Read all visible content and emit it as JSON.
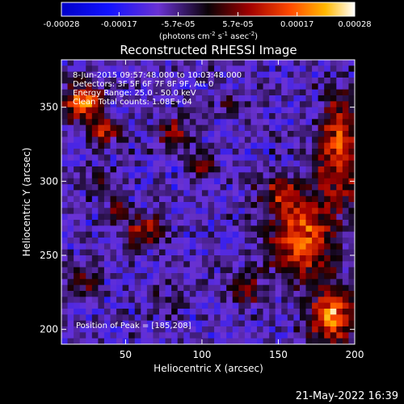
{
  "chart_data": {
    "type": "heatmap",
    "title": "Reconstructed RHESSI Image",
    "xlabel": "Heliocentric X (arcsec)",
    "ylabel": "Heliocentric Y (arcsec)",
    "xlim": [
      8,
      200
    ],
    "ylim": [
      190,
      382
    ],
    "xticks": [
      50,
      100,
      150,
      200
    ],
    "yticks": [
      200,
      250,
      300,
      350
    ],
    "colorbar": {
      "range": [
        -0.00028,
        0.00028
      ],
      "tick_values": [
        -0.00028,
        -0.00017,
        -5.7e-05,
        5.7e-05,
        0.00017,
        0.00028
      ],
      "tick_labels": [
        "-0.00028",
        "-0.00017",
        "-5.7e-05",
        "5.7e-05",
        "0.00017",
        "0.00028"
      ],
      "unit_parts": [
        "(photons cm",
        "-2",
        " s",
        "-1",
        " asec",
        "-2",
        ")"
      ]
    },
    "annotations": [
      "8-Jun-2015 09:57:48.000 to 10:03:48.000",
      "Detectors: 3F 5F 6F 7F 8F 9F, Att 0",
      "Energy Range: 25.0 - 50.0 keV",
      "Clean    Total counts: 1.08E+04"
    ],
    "peak_label": "Position of Peak = [185,208]",
    "peak": [
      185,
      208
    ],
    "grid": {
      "cols": 48,
      "rows": 48,
      "seed": 7,
      "background": -9e-05,
      "blobs": [
        {
          "x": 22,
          "y": 353,
          "sx": 9,
          "sy": 8,
          "amp": 0.00028
        },
        {
          "x": 36,
          "y": 334,
          "sx": 7,
          "sy": 6,
          "amp": 0.00018
        },
        {
          "x": 82,
          "y": 332,
          "sx": 8,
          "sy": 7,
          "amp": 0.00015
        },
        {
          "x": 100,
          "y": 311,
          "sx": 6,
          "sy": 6,
          "amp": 0.00012
        },
        {
          "x": 118,
          "y": 352,
          "sx": 6,
          "sy": 5,
          "amp": 9e-05
        },
        {
          "x": 63,
          "y": 266,
          "sx": 9,
          "sy": 7,
          "amp": 0.00018
        },
        {
          "x": 44,
          "y": 282,
          "sx": 6,
          "sy": 6,
          "amp": 0.00011
        },
        {
          "x": 165,
          "y": 262,
          "sx": 14,
          "sy": 20,
          "amp": 0.00025
        },
        {
          "x": 190,
          "y": 320,
          "sx": 10,
          "sy": 25,
          "amp": 0.00024
        },
        {
          "x": 185,
          "y": 208,
          "sx": 10,
          "sy": 12,
          "amp": 0.00029
        },
        {
          "x": 150,
          "y": 292,
          "sx": 8,
          "sy": 8,
          "amp": 0.00014
        },
        {
          "x": 23,
          "y": 232,
          "sx": 7,
          "sy": 8,
          "amp": 0.00011
        },
        {
          "x": 128,
          "y": 228,
          "sx": 9,
          "sy": 8,
          "amp": 0.00012
        },
        {
          "x": 75,
          "y": 218,
          "sx": 10,
          "sy": 6,
          "amp": 7e-05
        },
        {
          "x": 33,
          "y": 300,
          "sx": 8,
          "sy": 5,
          "amp": 8e-05
        }
      ]
    }
  },
  "footer_timestamp": "21-May-2022 16:39"
}
